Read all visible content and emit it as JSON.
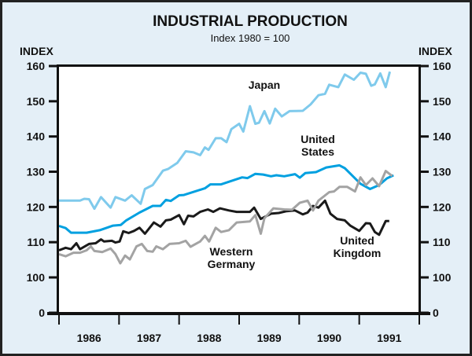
{
  "chart_data": {
    "type": "line",
    "title": "INDUSTRIAL PRODUCTION",
    "subtitle": "Index 1980 = 100",
    "ylabel_left": "INDEX",
    "ylabel_right": "INDEX",
    "xlim": [
      1986,
      1992
    ],
    "ylim": [
      0,
      160
    ],
    "y_axis_break": "between 0 and 100",
    "yticks": [
      "160",
      "150",
      "140",
      "130",
      "120",
      "110",
      "100",
      "0"
    ],
    "ytick_values": [
      160,
      150,
      140,
      130,
      120,
      110,
      100,
      0
    ],
    "xticks": [
      "1986",
      "1987",
      "1988",
      "1989",
      "1990",
      "1991"
    ],
    "grid": false,
    "colors": {
      "background": "#e4eff7",
      "plot": "#ffffff",
      "frame": "#222222"
    },
    "series": [
      {
        "name": "Japan",
        "label_lines": [
          "Japan"
        ],
        "color": "#7fcaec",
        "points": [
          [
            1986.0,
            121.8
          ],
          [
            1986.35,
            121.8
          ],
          [
            1986.42,
            122.3
          ],
          [
            1986.5,
            122.2
          ],
          [
            1986.59,
            119.5
          ],
          [
            1986.7,
            122.8
          ],
          [
            1986.86,
            119.8
          ],
          [
            1986.94,
            122.8
          ],
          [
            1987.1,
            121.8
          ],
          [
            1987.21,
            123.3
          ],
          [
            1987.36,
            120.9
          ],
          [
            1987.43,
            125.1
          ],
          [
            1987.56,
            126.2
          ],
          [
            1987.73,
            130.3
          ],
          [
            1987.82,
            130.8
          ],
          [
            1987.97,
            132.5
          ],
          [
            1988.11,
            135.8
          ],
          [
            1988.24,
            135.5
          ],
          [
            1988.35,
            134.7
          ],
          [
            1988.43,
            136.9
          ],
          [
            1988.49,
            136.2
          ],
          [
            1988.61,
            139.5
          ],
          [
            1988.7,
            139.5
          ],
          [
            1988.79,
            138.4
          ],
          [
            1988.87,
            142.1
          ],
          [
            1989.0,
            143.6
          ],
          [
            1989.07,
            141.4
          ],
          [
            1989.18,
            148.6
          ],
          [
            1989.27,
            143.6
          ],
          [
            1989.33,
            143.9
          ],
          [
            1989.42,
            147.2
          ],
          [
            1989.51,
            143.7
          ],
          [
            1989.6,
            147.9
          ],
          [
            1989.71,
            145.7
          ],
          [
            1989.84,
            147.2
          ],
          [
            1990.06,
            147.3
          ],
          [
            1990.19,
            149.1
          ],
          [
            1990.32,
            151.7
          ],
          [
            1990.43,
            152.1
          ],
          [
            1990.5,
            154.7
          ],
          [
            1990.65,
            154.0
          ],
          [
            1990.76,
            157.6
          ],
          [
            1990.91,
            156.1
          ],
          [
            1991.02,
            158.1
          ],
          [
            1991.11,
            157.8
          ],
          [
            1991.2,
            154.4
          ],
          [
            1991.26,
            154.8
          ],
          [
            1991.35,
            157.9
          ],
          [
            1991.44,
            154.0
          ],
          [
            1991.51,
            158.4
          ]
        ]
      },
      {
        "name": "United States",
        "label_lines": [
          "United",
          "States"
        ],
        "color": "#00a0e0",
        "points": [
          [
            1986.0,
            114.6
          ],
          [
            1986.11,
            114.0
          ],
          [
            1986.2,
            112.7
          ],
          [
            1986.46,
            112.7
          ],
          [
            1986.68,
            113.4
          ],
          [
            1986.9,
            114.7
          ],
          [
            1987.03,
            114.9
          ],
          [
            1987.12,
            116.2
          ],
          [
            1987.34,
            118.4
          ],
          [
            1987.56,
            120.3
          ],
          [
            1987.69,
            120.3
          ],
          [
            1987.78,
            122.0
          ],
          [
            1987.86,
            121.7
          ],
          [
            1988.0,
            123.3
          ],
          [
            1988.08,
            123.4
          ],
          [
            1988.43,
            125.3
          ],
          [
            1988.52,
            126.4
          ],
          [
            1988.7,
            126.4
          ],
          [
            1989.05,
            128.4
          ],
          [
            1989.14,
            128.2
          ],
          [
            1989.27,
            129.4
          ],
          [
            1989.4,
            129.2
          ],
          [
            1989.53,
            128.7
          ],
          [
            1989.62,
            129.0
          ],
          [
            1989.75,
            128.7
          ],
          [
            1989.93,
            129.3
          ],
          [
            1990.01,
            128.3
          ],
          [
            1990.1,
            129.6
          ],
          [
            1990.28,
            129.9
          ],
          [
            1990.45,
            131.2
          ],
          [
            1990.67,
            131.8
          ],
          [
            1990.76,
            131.0
          ],
          [
            1990.89,
            128.8
          ],
          [
            1991.02,
            126.6
          ],
          [
            1991.18,
            125.1
          ],
          [
            1991.33,
            126.2
          ],
          [
            1991.46,
            128.1
          ],
          [
            1991.57,
            129.0
          ]
        ]
      },
      {
        "name": "United Kingdom",
        "label_lines": [
          "United",
          "Kingdom"
        ],
        "color": "#1a1a1a",
        "points": [
          [
            1986.0,
            107.7
          ],
          [
            1986.11,
            108.4
          ],
          [
            1986.2,
            108.0
          ],
          [
            1986.29,
            109.7
          ],
          [
            1986.35,
            108.0
          ],
          [
            1986.5,
            109.5
          ],
          [
            1986.61,
            109.7
          ],
          [
            1986.7,
            110.8
          ],
          [
            1986.75,
            110.2
          ],
          [
            1986.88,
            110.4
          ],
          [
            1986.94,
            109.9
          ],
          [
            1987.01,
            110.2
          ],
          [
            1987.07,
            113.1
          ],
          [
            1987.16,
            112.6
          ],
          [
            1987.25,
            113.2
          ],
          [
            1987.34,
            114.1
          ],
          [
            1987.43,
            112.4
          ],
          [
            1987.58,
            115.6
          ],
          [
            1987.69,
            114.4
          ],
          [
            1987.78,
            116.2
          ],
          [
            1987.86,
            116.4
          ],
          [
            1988.0,
            117.7
          ],
          [
            1988.08,
            115.1
          ],
          [
            1988.15,
            117.5
          ],
          [
            1988.24,
            117.3
          ],
          [
            1988.35,
            118.6
          ],
          [
            1988.48,
            119.3
          ],
          [
            1988.57,
            118.6
          ],
          [
            1988.68,
            119.6
          ],
          [
            1988.83,
            119.0
          ],
          [
            1988.96,
            118.6
          ],
          [
            1989.18,
            118.6
          ],
          [
            1989.25,
            119.8
          ],
          [
            1989.36,
            116.6
          ],
          [
            1989.53,
            118.1
          ],
          [
            1989.66,
            118.3
          ],
          [
            1989.79,
            118.8
          ],
          [
            1989.93,
            119.0
          ],
          [
            1990.06,
            117.9
          ],
          [
            1990.14,
            118.4
          ],
          [
            1990.23,
            120.3
          ],
          [
            1990.32,
            119.8
          ],
          [
            1990.43,
            121.8
          ],
          [
            1990.52,
            118.1
          ],
          [
            1990.63,
            116.6
          ],
          [
            1990.76,
            116.2
          ],
          [
            1990.85,
            114.7
          ],
          [
            1991.0,
            113.2
          ],
          [
            1991.11,
            115.4
          ],
          [
            1991.18,
            115.3
          ],
          [
            1991.26,
            112.9
          ],
          [
            1991.33,
            112.1
          ],
          [
            1991.44,
            116.0
          ],
          [
            1991.5,
            116.0
          ]
        ]
      },
      {
        "name": "Western Germany",
        "label_lines": [
          "Western",
          "Germany"
        ],
        "color": "#a3a3a3",
        "points": [
          [
            1986.0,
            106.6
          ],
          [
            1986.11,
            106.0
          ],
          [
            1986.24,
            107.0
          ],
          [
            1986.35,
            107.0
          ],
          [
            1986.46,
            107.7
          ],
          [
            1986.53,
            108.8
          ],
          [
            1986.59,
            107.5
          ],
          [
            1986.72,
            107.2
          ],
          [
            1986.86,
            108.2
          ],
          [
            1986.94,
            106.6
          ],
          [
            1987.02,
            104.0
          ],
          [
            1987.1,
            106.2
          ],
          [
            1987.18,
            105.1
          ],
          [
            1987.29,
            108.8
          ],
          [
            1987.38,
            109.5
          ],
          [
            1987.47,
            107.5
          ],
          [
            1987.56,
            107.3
          ],
          [
            1987.62,
            108.8
          ],
          [
            1987.73,
            108.0
          ],
          [
            1987.84,
            109.5
          ],
          [
            1988.0,
            109.7
          ],
          [
            1988.11,
            110.4
          ],
          [
            1988.19,
            108.7
          ],
          [
            1988.35,
            110.2
          ],
          [
            1988.43,
            111.8
          ],
          [
            1988.5,
            110.2
          ],
          [
            1988.61,
            114.1
          ],
          [
            1988.7,
            112.9
          ],
          [
            1988.83,
            113.4
          ],
          [
            1988.96,
            115.6
          ],
          [
            1989.18,
            115.9
          ],
          [
            1989.27,
            117.7
          ],
          [
            1989.36,
            112.4
          ],
          [
            1989.42,
            116.8
          ],
          [
            1989.57,
            119.6
          ],
          [
            1989.75,
            119.3
          ],
          [
            1989.88,
            119.2
          ],
          [
            1990.01,
            121.2
          ],
          [
            1990.14,
            121.8
          ],
          [
            1990.23,
            119.0
          ],
          [
            1990.32,
            121.8
          ],
          [
            1990.5,
            124.2
          ],
          [
            1990.58,
            124.4
          ],
          [
            1990.67,
            125.7
          ],
          [
            1990.8,
            125.7
          ],
          [
            1990.93,
            124.4
          ],
          [
            1991.02,
            128.4
          ],
          [
            1991.11,
            126.2
          ],
          [
            1991.22,
            128.1
          ],
          [
            1991.33,
            125.9
          ],
          [
            1991.44,
            130.2
          ],
          [
            1991.55,
            128.8
          ]
        ]
      }
    ]
  }
}
